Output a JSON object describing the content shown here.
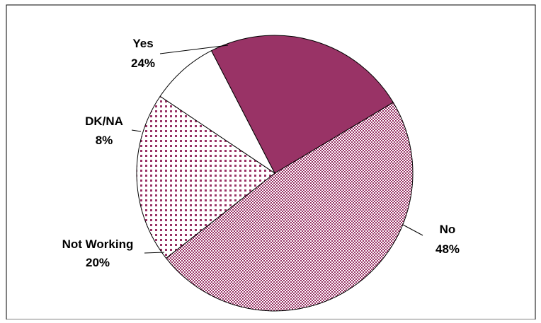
{
  "chart_data": {
    "type": "pie",
    "title": "",
    "slices": [
      {
        "label": "No",
        "value": 48,
        "value_label": "48%",
        "pattern": "checker",
        "color": "#993366"
      },
      {
        "label": "Not Working",
        "value": 20,
        "value_label": "20%",
        "pattern": "dots",
        "color": "#993366"
      },
      {
        "label": "DK/NA",
        "value": 8,
        "value_label": "8%",
        "pattern": "none",
        "color": "#ffffff"
      },
      {
        "label": "Yes",
        "value": 24,
        "value_label": "24%",
        "pattern": "solid",
        "color": "#993366"
      }
    ],
    "legend": "none",
    "labels": "outside-with-leader-lines"
  }
}
